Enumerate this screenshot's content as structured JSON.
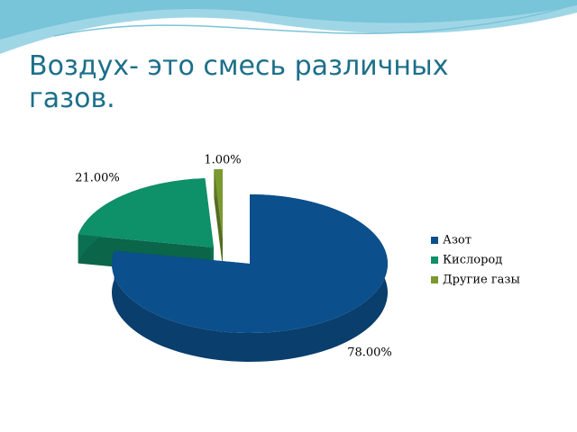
{
  "chart_data": {
    "type": "pie3d",
    "title": "Воздух- это смесь различных газов.",
    "categories": [
      "Азот",
      "Кислород",
      "Другие газы"
    ],
    "values": [
      78,
      21,
      1
    ],
    "value_labels": [
      "78.00%",
      "21.00%",
      "1.00%"
    ],
    "colors": [
      "#0b4f8c",
      "#0e9068",
      "#7a9a30"
    ],
    "legend": "right"
  }
}
